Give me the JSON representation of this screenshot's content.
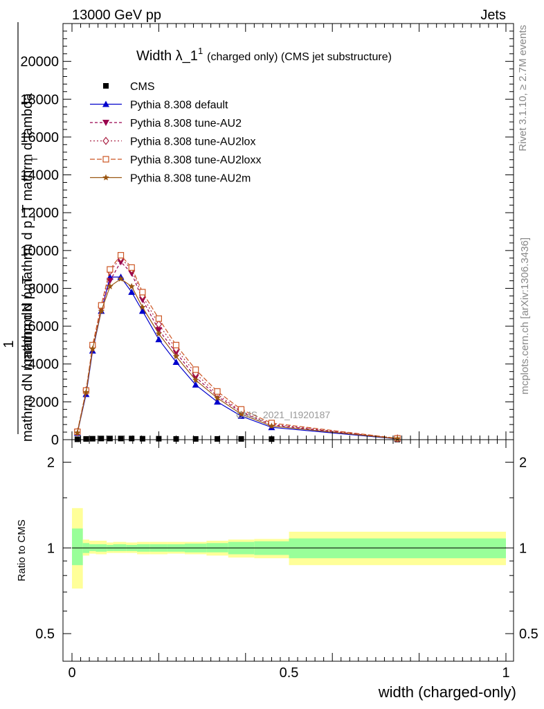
{
  "header": {
    "energy_label": "13000 GeV pp",
    "process_label": "Jets"
  },
  "side": {
    "rivet_label": "Rivet 3.1.10, ≥ 2.7M events",
    "mcplots_label": "mcplots.cern.ch [arXiv:1306.3436]"
  },
  "watermark": "CMS_2021_I1920187",
  "colors": {
    "cms": "#000000",
    "default": "#0000cc",
    "au2": "#99004d",
    "au2lox": "#aa2244",
    "au2loxx": "#cc5522",
    "au2m": "#995511",
    "band_inner": "#99ff99",
    "band_outer": "#ffff99"
  },
  "chart_data": [
    {
      "type": "line",
      "title_main": "Width λ_1",
      "title_sup": "1",
      "title_rest": "(charged only) (CMS jet substructure)",
      "ylabel_top": "mathrm dN / mathrm d p_T mathrm d lambda",
      "ylabel_frac_num": "1",
      "ylabel_frac_den": "mathrm dN / mathrm d p_T",
      "ylabel_sub": "T",
      "xlim": [
        0,
        1
      ],
      "ylim": [
        0,
        22000
      ],
      "yticks": [
        0,
        2000,
        4000,
        6000,
        8000,
        10000,
        12000,
        14000,
        16000,
        18000,
        20000
      ],
      "ytick_labels": [
        "0",
        "2000",
        "4000",
        "6000",
        "8000",
        "10000",
        "12000",
        "14000",
        "16000",
        "18000",
        "20000"
      ],
      "legend_position": "top-left",
      "x": [
        0.0125,
        0.0325,
        0.0475,
        0.0675,
        0.0875,
        0.1125,
        0.1375,
        0.1625,
        0.2,
        0.24,
        0.285,
        0.335,
        0.39,
        0.46,
        0.75
      ],
      "series": [
        {
          "name": "CMS",
          "key": "cms",
          "marker": "square",
          "values": [
            20,
            40,
            50,
            60,
            60,
            60,
            60,
            50,
            50,
            40,
            40,
            40,
            40,
            30,
            10
          ]
        },
        {
          "name": "Pythia 8.308 default",
          "key": "default",
          "marker": "triangle-up",
          "dash": "",
          "values": [
            350,
            2400,
            4700,
            6800,
            8600,
            8600,
            7800,
            6800,
            5300,
            4100,
            2900,
            2000,
            1250,
            650,
            40
          ]
        },
        {
          "name": "Pythia 8.308 tune-AU2",
          "key": "au2",
          "marker": "triangle-down",
          "dash": "4,3",
          "values": [
            380,
            2500,
            4800,
            6900,
            8400,
            9400,
            8800,
            7400,
            5800,
            4600,
            3300,
            2300,
            1450,
            780,
            60
          ]
        },
        {
          "name": "Pythia 8.308 tune-AU2lox",
          "key": "au2lox",
          "marker": "diamond",
          "dash": "2,3",
          "values": [
            400,
            2600,
            4900,
            7000,
            8900,
            9600,
            9000,
            7600,
            6100,
            4800,
            3500,
            2400,
            1500,
            820,
            65
          ]
        },
        {
          "name": "Pythia 8.308 tune-AU2loxx",
          "key": "au2loxx",
          "marker": "square-open",
          "dash": "7,3",
          "values": [
            420,
            2600,
            5000,
            7100,
            9000,
            9750,
            9100,
            7800,
            6400,
            5000,
            3700,
            2550,
            1600,
            880,
            70
          ]
        },
        {
          "name": "Pythia 8.308 tune-AU2m",
          "key": "au2m",
          "marker": "star",
          "dash": "",
          "values": [
            360,
            2500,
            4800,
            6800,
            8100,
            8500,
            8100,
            7000,
            5600,
            4400,
            3150,
            2200,
            1350,
            720,
            50
          ]
        }
      ]
    },
    {
      "type": "area",
      "ylabel": "Ratio to CMS",
      "xlabel": "width (charged-only)",
      "xlim": [
        0,
        1
      ],
      "ylim": [
        0.4,
        2.4
      ],
      "scale": "log",
      "yticks": [
        0.5,
        1,
        2
      ],
      "ytick_labels": [
        "0.5",
        "1",
        "2"
      ],
      "xticks": [
        0,
        0.5,
        1
      ],
      "xtick_labels": [
        "0",
        "0.5",
        "1"
      ],
      "bins": [
        {
          "x1": 0.0,
          "x2": 0.025,
          "inner": [
            0.87,
            1.17
          ],
          "outer": [
            0.72,
            1.38
          ]
        },
        {
          "x1": 0.025,
          "x2": 0.04,
          "inner": [
            0.96,
            1.04
          ],
          "outer": [
            0.94,
            1.07
          ]
        },
        {
          "x1": 0.04,
          "x2": 0.055,
          "inner": [
            0.975,
            1.03
          ],
          "outer": [
            0.955,
            1.06
          ]
        },
        {
          "x1": 0.055,
          "x2": 0.08,
          "inner": [
            0.97,
            1.03
          ],
          "outer": [
            0.95,
            1.06
          ]
        },
        {
          "x1": 0.08,
          "x2": 0.095,
          "inner": [
            0.975,
            1.025
          ],
          "outer": [
            0.96,
            1.045
          ]
        },
        {
          "x1": 0.095,
          "x2": 0.125,
          "inner": [
            0.975,
            1.03
          ],
          "outer": [
            0.96,
            1.05
          ]
        },
        {
          "x1": 0.125,
          "x2": 0.15,
          "inner": [
            0.975,
            1.025
          ],
          "outer": [
            0.96,
            1.045
          ]
        },
        {
          "x1": 0.15,
          "x2": 0.18,
          "inner": [
            0.97,
            1.03
          ],
          "outer": [
            0.95,
            1.05
          ]
        },
        {
          "x1": 0.18,
          "x2": 0.22,
          "inner": [
            0.97,
            1.03
          ],
          "outer": [
            0.95,
            1.05
          ]
        },
        {
          "x1": 0.22,
          "x2": 0.26,
          "inner": [
            0.97,
            1.03
          ],
          "outer": [
            0.955,
            1.05
          ]
        },
        {
          "x1": 0.26,
          "x2": 0.31,
          "inner": [
            0.965,
            1.035
          ],
          "outer": [
            0.95,
            1.05
          ]
        },
        {
          "x1": 0.31,
          "x2": 0.36,
          "inner": [
            0.965,
            1.04
          ],
          "outer": [
            0.94,
            1.06
          ]
        },
        {
          "x1": 0.36,
          "x2": 0.42,
          "inner": [
            0.95,
            1.05
          ],
          "outer": [
            0.925,
            1.07
          ]
        },
        {
          "x1": 0.42,
          "x2": 0.5,
          "inner": [
            0.945,
            1.055
          ],
          "outer": [
            0.92,
            1.075
          ]
        },
        {
          "x1": 0.5,
          "x2": 1.0,
          "inner": [
            0.92,
            1.08
          ],
          "outer": [
            0.87,
            1.14
          ]
        }
      ]
    }
  ]
}
